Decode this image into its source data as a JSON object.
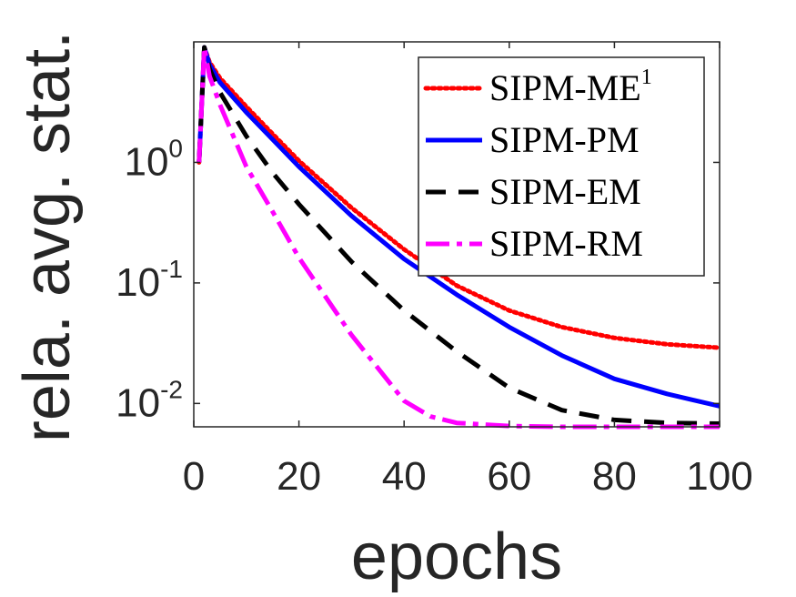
{
  "chart_data": {
    "type": "line",
    "title": "",
    "xlabel": "epochs",
    "ylabel": "rela. avg. stat.",
    "xlim": [
      0,
      100
    ],
    "ylim": [
      0.0064,
      10
    ],
    "yscale": "log",
    "grid": false,
    "legend_position": "top-right",
    "x_ticks": [
      {
        "value": 0,
        "label": "0"
      },
      {
        "value": 20,
        "label": "20"
      },
      {
        "value": 40,
        "label": "40"
      },
      {
        "value": 60,
        "label": "60"
      },
      {
        "value": 80,
        "label": "80"
      },
      {
        "value": 100,
        "label": "100"
      }
    ],
    "y_ticks": [
      {
        "value": 1,
        "base": "10",
        "exp": "0"
      },
      {
        "value": 0.1,
        "base": "10",
        "exp": "-1"
      },
      {
        "value": 0.01,
        "base": "10",
        "exp": "-2"
      }
    ],
    "series": [
      {
        "name": "SIPM-ME",
        "superscript": "1",
        "color": "#ff0000",
        "style": "dotted",
        "x": [
          1,
          2,
          3,
          5,
          10,
          15,
          20,
          30,
          40,
          50,
          60,
          70,
          80,
          90,
          100
        ],
        "y": [
          1.0,
          9.0,
          6.8,
          5.0,
          2.9,
          1.72,
          1.03,
          0.42,
          0.19,
          0.095,
          0.059,
          0.043,
          0.035,
          0.031,
          0.029
        ]
      },
      {
        "name": "SIPM-PM",
        "superscript": "",
        "color": "#0000ff",
        "style": "solid",
        "x": [
          1,
          2,
          3,
          5,
          10,
          15,
          20,
          30,
          40,
          50,
          60,
          70,
          80,
          90,
          100
        ],
        "y": [
          1.0,
          9.0,
          6.5,
          4.6,
          2.6,
          1.55,
          0.92,
          0.36,
          0.158,
          0.08,
          0.043,
          0.025,
          0.016,
          0.012,
          0.0095
        ]
      },
      {
        "name": "SIPM-EM",
        "superscript": "",
        "color": "#000000",
        "style": "dashed",
        "x": [
          1,
          2,
          3,
          5,
          10,
          15,
          20,
          30,
          40,
          50,
          60,
          70,
          80,
          90,
          100
        ],
        "y": [
          1.0,
          9.0,
          6.0,
          3.8,
          1.65,
          0.82,
          0.45,
          0.15,
          0.059,
          0.027,
          0.0135,
          0.0088,
          0.0073,
          0.0069,
          0.0068
        ]
      },
      {
        "name": "SIPM-RM",
        "superscript": "",
        "color": "#ff00ff",
        "style": "dashdot",
        "x": [
          1,
          2,
          3,
          5,
          10,
          15,
          20,
          30,
          40,
          45,
          50,
          60,
          70,
          80,
          90,
          100
        ],
        "y": [
          1.0,
          9.0,
          5.2,
          3.0,
          0.92,
          0.39,
          0.162,
          0.037,
          0.0105,
          0.0078,
          0.0069,
          0.0065,
          0.0064,
          0.0064,
          0.0064,
          0.0064
        ]
      }
    ]
  }
}
